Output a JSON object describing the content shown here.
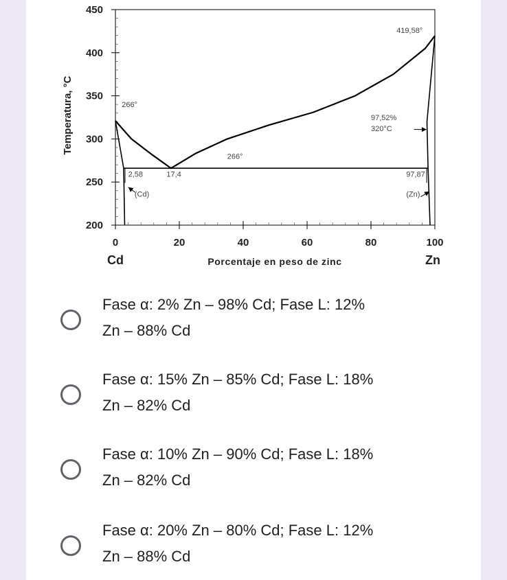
{
  "chart_data": {
    "type": "line",
    "title": "",
    "ylabel": "Temperatura, °C",
    "xlabel": "Porcentaje en peso de zinc",
    "xlim": [
      0,
      100
    ],
    "ylim": [
      200,
      450
    ],
    "x_ticks": [
      "0",
      "20",
      "40",
      "60",
      "80",
      "100"
    ],
    "y_ticks": [
      "200",
      "250",
      "300",
      "350",
      "400",
      "450"
    ],
    "x_end_labels": {
      "left": "Cd",
      "right": "Zn"
    },
    "series": [
      {
        "values": [
          [
            0,
            321
          ],
          [
            5,
            300
          ],
          [
            11,
            283
          ],
          [
            17.4,
            266
          ],
          [
            25,
            283
          ],
          [
            35,
            300
          ],
          [
            48,
            316
          ],
          [
            62,
            331
          ],
          [
            75,
            350
          ],
          [
            87,
            375
          ],
          [
            97,
            405
          ],
          [
            100,
            419.58
          ]
        ]
      },
      {
        "values": [
          [
            0,
            321
          ],
          [
            2.58,
            266
          ],
          [
            2.9,
            200
          ]
        ]
      },
      {
        "values": [
          [
            100,
            419.58
          ],
          [
            97.52,
            320
          ],
          [
            97.87,
            266
          ],
          [
            98.5,
            200
          ]
        ]
      },
      {
        "values": [
          [
            2.58,
            266
          ],
          [
            97.87,
            266
          ]
        ]
      }
    ],
    "annotations": [
      {
        "text": "266°",
        "x": 2,
        "y": 337
      },
      {
        "text": "266°",
        "x": 35,
        "y": 277
      },
      {
        "text": "419,58°",
        "x": 88,
        "y": 423
      },
      {
        "text": "97,52%",
        "x": 80,
        "y": 322
      },
      {
        "text": "320°C",
        "x": 80,
        "y": 309
      },
      {
        "text": "2,58",
        "x": 4,
        "y": 256
      },
      {
        "text": "17,4",
        "x": 16,
        "y": 256
      },
      {
        "text": "97,87",
        "x": 91,
        "y": 256
      },
      {
        "text": "(Cd)",
        "x": 6,
        "y": 233
      },
      {
        "text": "(Zn)",
        "x": 91,
        "y": 233
      }
    ],
    "grid": false
  },
  "question": {
    "options": [
      {
        "line1": "Fase α: 2% Zn – 98% Cd; Fase L: 12%",
        "line2": "Zn – 88% Cd"
      },
      {
        "line1": "Fase α: 15% Zn – 85% Cd; Fase L: 18%",
        "line2": "Zn – 82% Cd"
      },
      {
        "line1": "Fase α: 10% Zn – 90% Cd; Fase L: 18%",
        "line2": "Zn – 82% Cd"
      },
      {
        "line1": "Fase α: 20% Zn – 80% Cd; Fase L: 12%",
        "line2": "Zn – 88% Cd"
      }
    ]
  },
  "colors": {
    "page_background": "#ece9f5",
    "card": "#ffffff",
    "text": "#202124",
    "radio": "#5f6368",
    "chart_ink": "#000000"
  }
}
